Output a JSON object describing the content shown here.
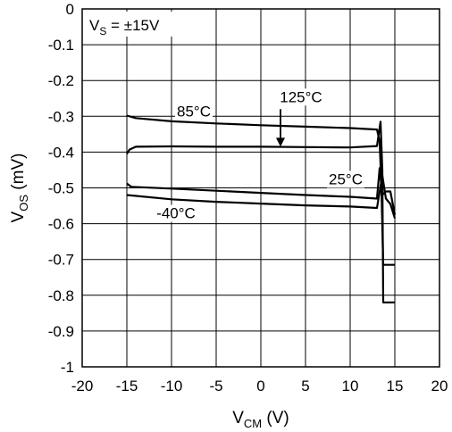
{
  "chart_data": {
    "type": "line",
    "title": "",
    "xlabel": {
      "main": "V",
      "sub": "CM",
      "unit": " (V)"
    },
    "ylabel": {
      "main": "V",
      "sub": "OS",
      "unit": " (mV)"
    },
    "xlim": [
      -20,
      20
    ],
    "ylim": [
      -1,
      0
    ],
    "x_ticks": [
      -20,
      -15,
      -10,
      -5,
      0,
      5,
      10,
      15,
      20
    ],
    "y_ticks": [
      0,
      -0.1,
      -0.2,
      -0.3,
      -0.4,
      -0.5,
      -0.6,
      -0.7,
      -0.8,
      -0.9,
      -1
    ],
    "grid": true,
    "condition": {
      "main": "V",
      "sub": "S",
      "rest": " = ±15V"
    },
    "series": [
      {
        "name": "85°C",
        "points": [
          [
            -15,
            -0.298
          ],
          [
            -14,
            -0.305
          ],
          [
            -10,
            -0.314
          ],
          [
            -5,
            -0.32
          ],
          [
            0,
            -0.325
          ],
          [
            5,
            -0.329
          ],
          [
            10,
            -0.333
          ],
          [
            13,
            -0.337
          ],
          [
            13.3,
            -0.37
          ],
          [
            13.5,
            -0.5
          ],
          [
            13.7,
            -0.715
          ],
          [
            15,
            -0.715
          ]
        ]
      },
      {
        "name": "125°C",
        "points": [
          [
            -15,
            -0.405
          ],
          [
            -14.7,
            -0.393
          ],
          [
            -14,
            -0.385
          ],
          [
            -10,
            -0.384
          ],
          [
            -5,
            -0.385
          ],
          [
            0,
            -0.385
          ],
          [
            5,
            -0.386
          ],
          [
            10,
            -0.387
          ],
          [
            13,
            -0.383
          ],
          [
            13.4,
            -0.315
          ],
          [
            13.6,
            -0.45
          ],
          [
            13.7,
            -0.82
          ],
          [
            15,
            -0.82
          ]
        ]
      },
      {
        "name": "25°C",
        "points": [
          [
            -15,
            -0.488
          ],
          [
            -14.5,
            -0.497
          ],
          [
            -10,
            -0.502
          ],
          [
            -5,
            -0.508
          ],
          [
            0,
            -0.514
          ],
          [
            5,
            -0.52
          ],
          [
            10,
            -0.525
          ],
          [
            13,
            -0.53
          ],
          [
            13.3,
            -0.445
          ],
          [
            13.6,
            -0.52
          ],
          [
            14,
            -0.51
          ],
          [
            14.5,
            -0.51
          ],
          [
            15,
            -0.575
          ]
        ]
      },
      {
        "name": "-40°C",
        "points": [
          [
            -15,
            -0.52
          ],
          [
            -10,
            -0.532
          ],
          [
            -5,
            -0.539
          ],
          [
            0,
            -0.544
          ],
          [
            5,
            -0.549
          ],
          [
            10,
            -0.552
          ],
          [
            13,
            -0.556
          ],
          [
            13.6,
            -0.465
          ],
          [
            14,
            -0.53
          ],
          [
            14.5,
            -0.545
          ],
          [
            15,
            -0.585
          ]
        ]
      }
    ],
    "annotations": [
      {
        "text": "85°C",
        "x": -7.5,
        "y": -0.3
      },
      {
        "text": "125°C",
        "x": 4.5,
        "y": -0.26,
        "arrow_to": [
          2.2,
          -0.385
        ]
      },
      {
        "text": "25°C",
        "x": 9.5,
        "y": -0.49
      },
      {
        "text": "-40°C",
        "x": -9.5,
        "y": -0.585
      }
    ]
  }
}
